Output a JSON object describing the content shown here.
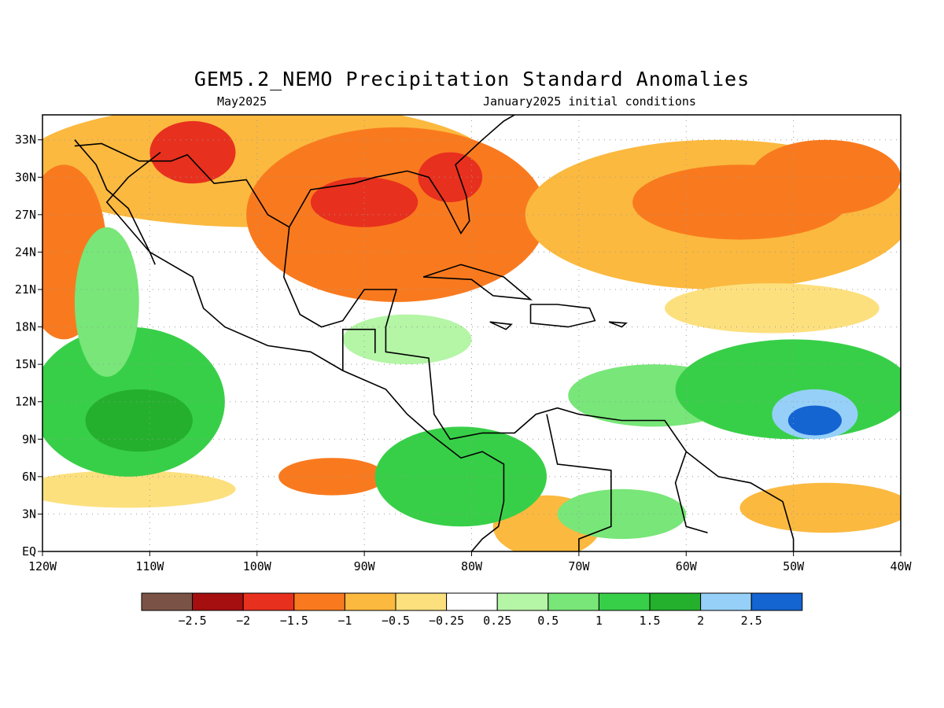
{
  "title": "GEM5.2_NEMO Precipitation Standard Anomalies",
  "subtitle_left": "May2025",
  "subtitle_right": "January2025 initial conditions",
  "map": {
    "lon_range": [
      -120,
      -40
    ],
    "lat_range": [
      0,
      35
    ],
    "lon_ticks": [
      "120W",
      "110W",
      "100W",
      "90W",
      "80W",
      "70W",
      "60W",
      "50W",
      "40W"
    ],
    "lat_ticks": [
      "EQ",
      "3N",
      "6N",
      "9N",
      "12N",
      "15N",
      "18N",
      "21N",
      "24N",
      "27N",
      "30N",
      "33N"
    ],
    "grid": true,
    "coastlines": true,
    "colors": {
      "strong_dry": "#e8301e",
      "dry": "#f97a1e",
      "moderate_dry": "#fbb93f",
      "weak_dry": "#fde07e",
      "neutral": "#ffffff",
      "weak_wet": "#b4f5a6",
      "moderate_wet": "#78e678",
      "wet": "#38cf48",
      "strong_wet": "#24b02c",
      "very_wet": "#96d0f8",
      "extreme_wet": "#1464d2"
    }
  },
  "colorbar": {
    "colors": [
      "#7b5346",
      "#a50f0f",
      "#e8301e",
      "#f97a1e",
      "#fbb93f",
      "#fde07e",
      "#ffffff",
      "#b4f5a6",
      "#78e678",
      "#38cf48",
      "#24b02c",
      "#96d0f8",
      "#1464d2"
    ],
    "labels": [
      "−2.5",
      "−2",
      "−1.5",
      "−1",
      "−0.5",
      "−0.25",
      "0.25",
      "0.5",
      "1",
      "1.5",
      "2",
      "2.5"
    ]
  }
}
